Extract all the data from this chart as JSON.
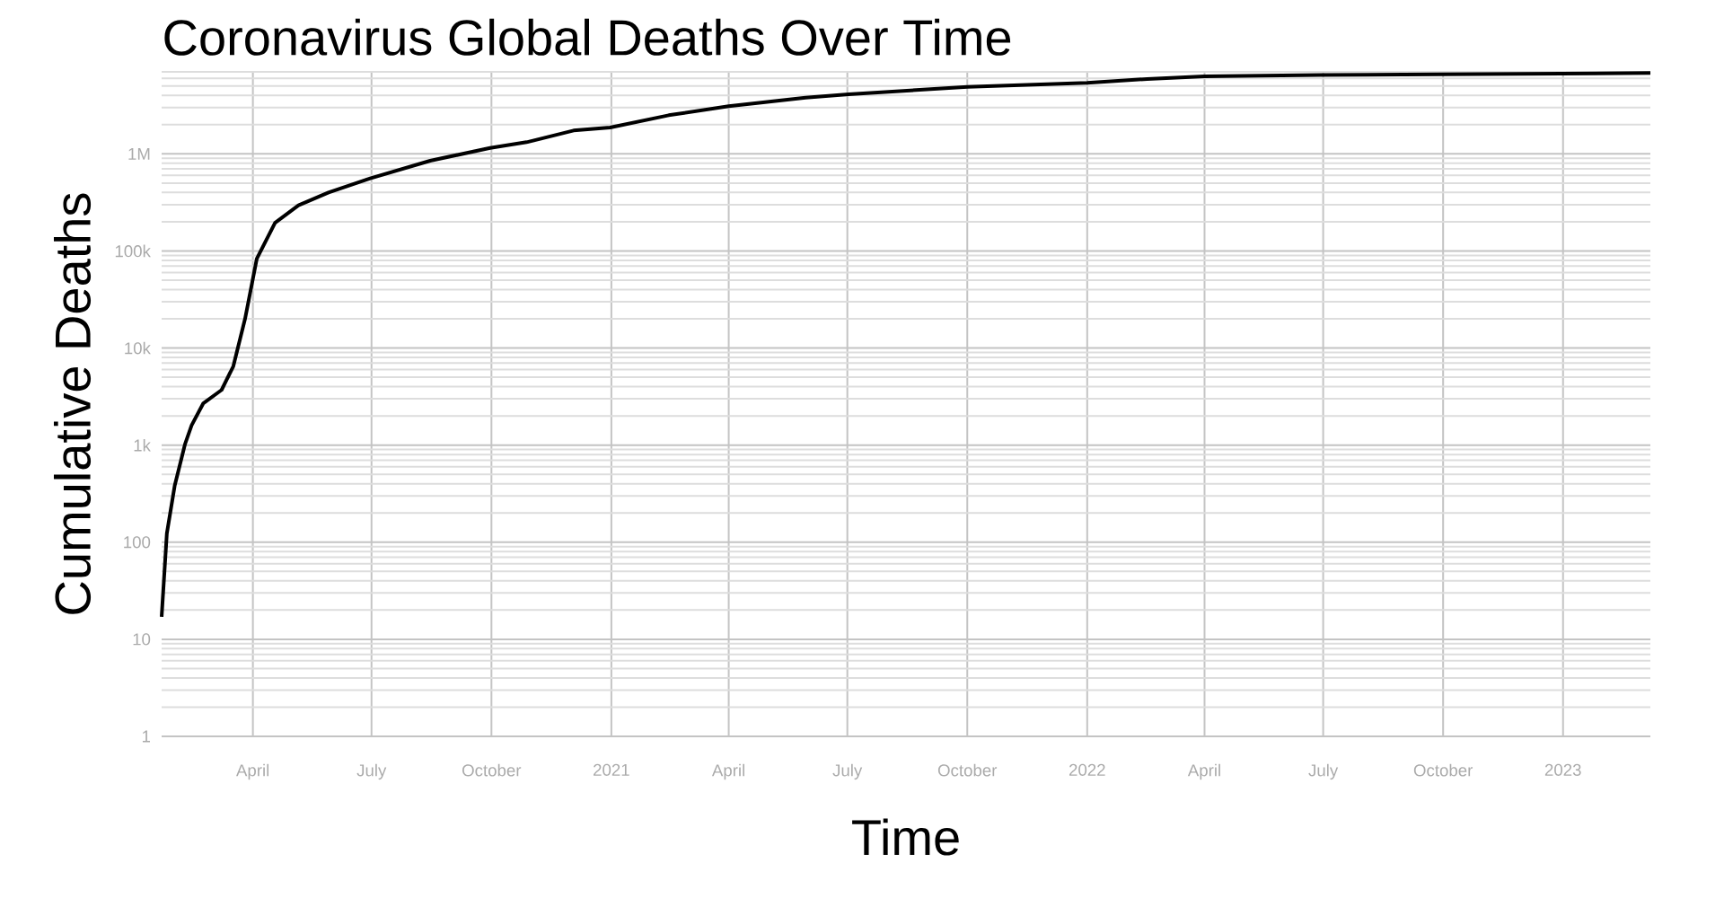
{
  "chart_data": {
    "type": "line",
    "title": "Coronavirus Global Deaths Over Time",
    "xlabel": "Time",
    "ylabel": "Cumulative Deaths",
    "log": "y",
    "grid": true,
    "xlim": [
      "2020-01-22",
      "2023-03-09"
    ],
    "ylim": [
      1,
      7000000
    ],
    "xticks": [
      {
        "value": "2020-04-01",
        "label": "April"
      },
      {
        "value": "2020-07-01",
        "label": "July"
      },
      {
        "value": "2020-10-01",
        "label": "October"
      },
      {
        "value": "2021-01-01",
        "label": "2021"
      },
      {
        "value": "2021-04-01",
        "label": "April"
      },
      {
        "value": "2021-07-01",
        "label": "July"
      },
      {
        "value": "2021-10-01",
        "label": "October"
      },
      {
        "value": "2022-01-01",
        "label": "2022"
      },
      {
        "value": "2022-04-01",
        "label": "April"
      },
      {
        "value": "2022-07-01",
        "label": "July"
      },
      {
        "value": "2022-10-01",
        "label": "October"
      },
      {
        "value": "2023-01-01",
        "label": "2023"
      }
    ],
    "yticks": [
      1,
      10,
      100,
      {
        "value": 1000,
        "label": "1k"
      },
      {
        "value": 10000,
        "label": "10k"
      },
      {
        "value": 100000,
        "label": "100k"
      },
      {
        "value": 1000000,
        "label": "1M"
      }
    ],
    "series": [
      {
        "color": "#000000",
        "x": [
          "2020-01-22",
          "2020-01-26",
          "2020-02-01",
          "2020-02-09",
          "2020-02-14",
          "2020-02-23",
          "2020-03-08",
          "2020-03-17",
          "2020-03-26",
          "2020-04-04",
          "2020-04-18",
          "2020-05-06",
          "2020-05-29",
          "2020-06-30",
          "2020-08-15",
          "2020-09-30",
          "2020-10-28",
          "2020-12-03",
          "2020-12-31",
          "2021-02-14",
          "2021-04-01",
          "2021-05-30",
          "2021-07-02",
          "2021-10-01",
          "2022-01-01",
          "2022-02-16",
          "2022-04-01",
          "2022-06-29",
          "2022-09-28",
          "2022-12-31",
          "2023-03-09"
        ],
        "values": [
          17,
          123,
          380,
          1030,
          1600,
          2700,
          3700,
          6500,
          20000,
          83000,
          195000,
          295000,
          400000,
          560000,
          850000,
          1150000,
          1320000,
          1740000,
          1870000,
          2500000,
          3100000,
          3800000,
          4100000,
          4900000,
          5400000,
          5900000,
          6300000,
          6500000,
          6600000,
          6700000,
          6800000
        ]
      }
    ]
  }
}
